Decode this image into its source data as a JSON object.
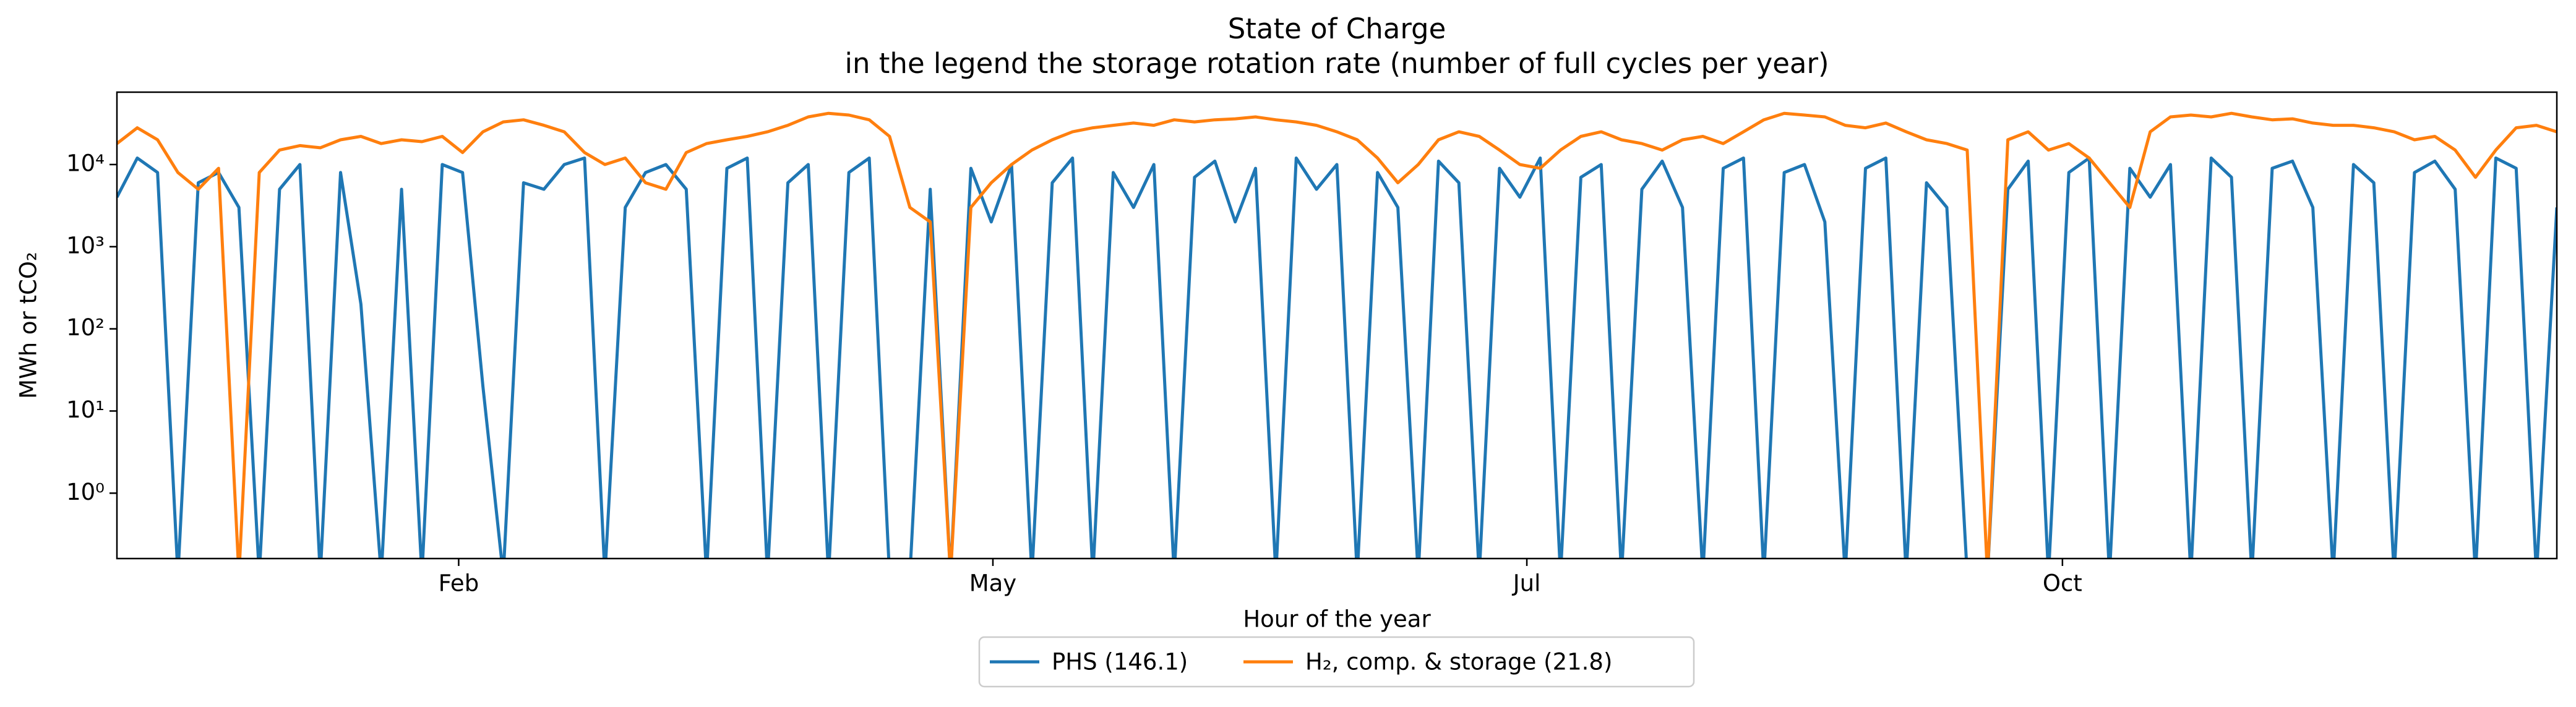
{
  "chart_data": {
    "type": "line",
    "title": "State of Charge",
    "subtitle": "in the legend the storage rotation rate (number of full cycles per year)",
    "x_label": "Hour of the year",
    "y_label": "MWh or tCO₂",
    "log_y": true,
    "legend": "below",
    "xlim": [
      0,
      8760
    ],
    "xticks": [
      {
        "value": 1227,
        "label": "Feb"
      },
      {
        "value": 3145,
        "label": "May"
      },
      {
        "value": 5062,
        "label": "Jul"
      },
      {
        "value": 6985,
        "label": "Oct"
      }
    ],
    "ylim": [
      0.16,
      76000
    ],
    "yticks": [
      {
        "value": 1,
        "label": "10⁰"
      },
      {
        "value": 10,
        "label": "10¹"
      },
      {
        "value": 100,
        "label": "10²"
      },
      {
        "value": 1000,
        "label": "10³"
      },
      {
        "value": 10000,
        "label": "10⁴"
      }
    ],
    "x": [
      0,
      73,
      146,
      219,
      292,
      365,
      438,
      511,
      584,
      657,
      730,
      803,
      876,
      949,
      1022,
      1095,
      1168,
      1241,
      1314,
      1387,
      1460,
      1533,
      1606,
      1679,
      1752,
      1825,
      1898,
      1971,
      2044,
      2117,
      2190,
      2263,
      2336,
      2409,
      2482,
      2555,
      2628,
      2701,
      2774,
      2847,
      2920,
      2993,
      3066,
      3139,
      3212,
      3285,
      3358,
      3431,
      3504,
      3577,
      3650,
      3723,
      3796,
      3869,
      3942,
      4015,
      4088,
      4161,
      4234,
      4307,
      4380,
      4453,
      4526,
      4599,
      4672,
      4745,
      4818,
      4891,
      4964,
      5037,
      5110,
      5183,
      5256,
      5329,
      5402,
      5475,
      5548,
      5621,
      5694,
      5767,
      5840,
      5913,
      5986,
      6059,
      6132,
      6205,
      6278,
      6351,
      6424,
      6497,
      6570,
      6643,
      6716,
      6789,
      6862,
      6935,
      7008,
      7081,
      7154,
      7227,
      7300,
      7373,
      7446,
      7519,
      7592,
      7665,
      7738,
      7811,
      7884,
      7957,
      8030,
      8103,
      8176,
      8249,
      8322,
      8395,
      8468,
      8541,
      8614,
      8687,
      8760
    ],
    "series": [
      {
        "name": "PHS (146.1)",
        "color": "#1f77b4",
        "values": [
          4000,
          12000,
          8000,
          0.1,
          6000,
          8000,
          3000,
          0.1,
          5000,
          10000,
          0.1,
          8000,
          200,
          0.1,
          5000,
          0.1,
          10000,
          8000,
          20,
          0.1,
          6000,
          5000,
          10000,
          12000,
          0.1,
          3000,
          8000,
          10000,
          5000,
          0.1,
          9000,
          12000,
          0.1,
          6000,
          10000,
          0.1,
          8000,
          12000,
          0.1,
          0.1,
          5000,
          0.1,
          9000,
          2000,
          10000,
          0.1,
          6000,
          12000,
          0.1,
          8000,
          3000,
          10000,
          0.1,
          7000,
          11000,
          2000,
          9000,
          0.1,
          12000,
          5000,
          10000,
          0.1,
          8000,
          3000,
          0.1,
          11000,
          6000,
          0.1,
          9000,
          4000,
          12000,
          0.1,
          7000,
          10000,
          0.1,
          5000,
          11000,
          3000,
          0.1,
          9000,
          12000,
          0.1,
          8000,
          10000,
          2000,
          0.1,
          9000,
          12000,
          0.1,
          6000,
          3000,
          0.1,
          0.1,
          5000,
          11000,
          0.1,
          8000,
          12000,
          0.1,
          9000,
          4000,
          10000,
          0.1,
          12000,
          7000,
          0.1,
          9000,
          11000,
          3000,
          0.1,
          10000,
          6000,
          0.1,
          8000,
          11000,
          5000,
          0.1,
          12000,
          9000,
          0.1,
          3000
        ]
      },
      {
        "name": "H₂, comp. & storage (21.8)",
        "color": "#ff7f0e",
        "values": [
          18000,
          28000,
          20000,
          8000,
          5000,
          9000,
          0.1,
          8000,
          15000,
          17000,
          16000,
          20000,
          22000,
          18000,
          20000,
          19000,
          22000,
          14000,
          25000,
          33000,
          35000,
          30000,
          25000,
          14000,
          10000,
          12000,
          6000,
          5000,
          14000,
          18000,
          20000,
          22000,
          25000,
          30000,
          38000,
          42000,
          40000,
          35000,
          22000,
          3000,
          2000,
          0.1,
          3000,
          6000,
          10000,
          15000,
          20000,
          25000,
          28000,
          30000,
          32000,
          30000,
          35000,
          33000,
          35000,
          36000,
          38000,
          35000,
          33000,
          30000,
          25000,
          20000,
          12000,
          6000,
          10000,
          20000,
          25000,
          22000,
          15000,
          10000,
          9000,
          15000,
          22000,
          25000,
          20000,
          18000,
          15000,
          20000,
          22000,
          18000,
          25000,
          35000,
          42000,
          40000,
          38000,
          30000,
          28000,
          32000,
          25000,
          20000,
          18000,
          15000,
          0.1,
          20000,
          25000,
          15000,
          18000,
          12000,
          6000,
          3000,
          25000,
          38000,
          40000,
          38000,
          42000,
          38000,
          35000,
          36000,
          32000,
          30000,
          30000,
          28000,
          25000,
          20000,
          22000,
          15000,
          7000,
          15000,
          28000,
          30000,
          25000
        ]
      }
    ]
  }
}
